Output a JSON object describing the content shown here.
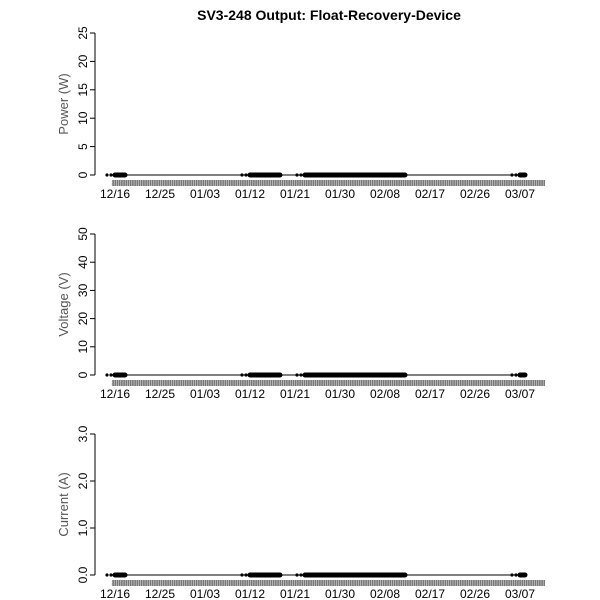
{
  "title": "SV3-248 Output: Float-Recovery-Device",
  "date_ticks": [
    "12/16",
    "12/25",
    "01/03",
    "01/12",
    "01/21",
    "01/30",
    "02/08",
    "02/17",
    "02/26",
    "03/07"
  ],
  "chart_data": [
    {
      "type": "scatter",
      "ylabel": "Power (W)",
      "ylim": [
        0,
        25
      ],
      "yticks": [
        "0",
        "5",
        "10",
        "15",
        "20",
        "25"
      ],
      "xlim": [
        "12/13",
        "03/12"
      ],
      "segments": [
        {
          "x": [
            "12/16",
            "12/18"
          ],
          "y": 0
        },
        {
          "x": [
            "01/12",
            "01/18"
          ],
          "y": 0
        },
        {
          "x": [
            "01/23",
            "02/12"
          ],
          "y": 0
        },
        {
          "x": [
            "03/07",
            "03/08"
          ],
          "y": 0
        }
      ],
      "line": {
        "x": [
          "12/16",
          "03/08"
        ],
        "y": 0
      }
    },
    {
      "type": "scatter",
      "ylabel": "Voltage (V)",
      "ylim": [
        0,
        50
      ],
      "yticks": [
        "0",
        "10",
        "20",
        "30",
        "40",
        "50"
      ],
      "xlim": [
        "12/13",
        "03/12"
      ],
      "segments": [
        {
          "x": [
            "12/16",
            "12/18"
          ],
          "y": 0
        },
        {
          "x": [
            "01/12",
            "01/18"
          ],
          "y": 0
        },
        {
          "x": [
            "01/23",
            "02/12"
          ],
          "y": 0
        },
        {
          "x": [
            "03/07",
            "03/08"
          ],
          "y": 0
        }
      ],
      "line": {
        "x": [
          "12/16",
          "03/08"
        ],
        "y": 0
      }
    },
    {
      "type": "scatter",
      "ylabel": "Current (A)",
      "ylim": [
        0,
        3
      ],
      "yticks": [
        "0.0",
        "1.0",
        "2.0",
        "3.0"
      ],
      "xlim": [
        "12/13",
        "03/12"
      ],
      "segments": [
        {
          "x": [
            "12/16",
            "12/18"
          ],
          "y": 0
        },
        {
          "x": [
            "01/12",
            "01/18"
          ],
          "y": 0
        },
        {
          "x": [
            "01/23",
            "02/12"
          ],
          "y": 0
        },
        {
          "x": [
            "03/07",
            "03/08"
          ],
          "y": 0
        }
      ],
      "line": {
        "x": [
          "12/16",
          "03/08"
        ],
        "y": 0
      }
    }
  ]
}
